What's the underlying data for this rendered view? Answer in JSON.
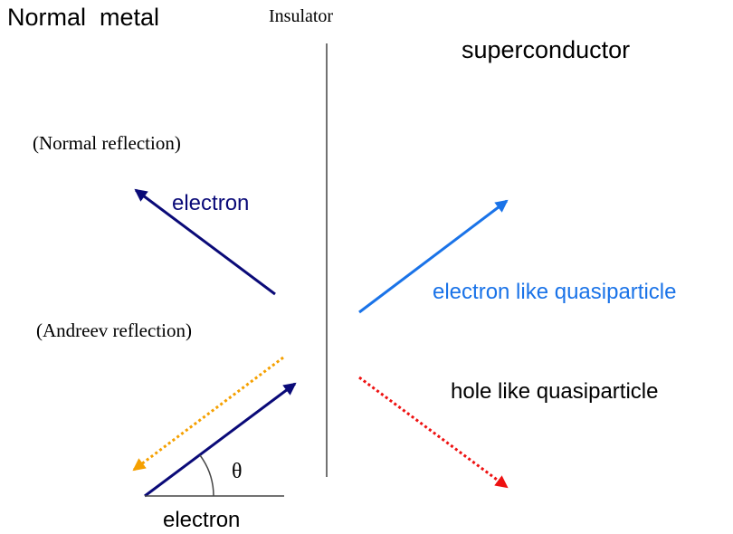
{
  "labels": {
    "normal_metal": "Normal  metal",
    "insulator": "Insulator",
    "superconductor": "superconductor",
    "normal_reflection": "(Normal reflection)",
    "reflected_electron": "electron",
    "andreev_reflection": "(Andreev reflection)",
    "electron_like": "electron like quasiparticle",
    "hole_like": "hole like quasiparticle",
    "theta": "θ",
    "incident_electron": "electron"
  }
}
